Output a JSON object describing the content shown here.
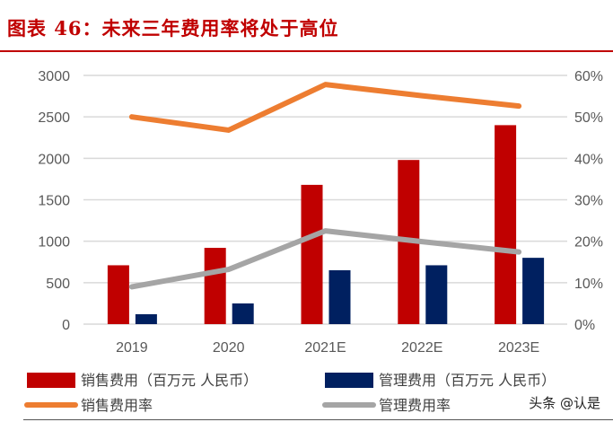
{
  "title": "图表 46：未来三年费用率将处于高位",
  "watermark": "头条 @认是",
  "colors": {
    "sales_expense": "#c00000",
    "admin_expense": "#002060",
    "sales_rate": "#ed7d31",
    "admin_rate": "#a5a5a5",
    "title": "#c00000"
  },
  "chart_data": {
    "type": "bar",
    "categories": [
      "2019",
      "2020",
      "2021E",
      "2022E",
      "2023E"
    ],
    "y_left": {
      "range": [
        0,
        3000
      ],
      "ticks": [
        "0",
        "500",
        "1000",
        "1500",
        "2000",
        "2500",
        "3000"
      ]
    },
    "y_right": {
      "range": [
        0,
        60
      ],
      "ticks": [
        "0%",
        "10%",
        "20%",
        "30%",
        "40%",
        "50%",
        "60%"
      ]
    },
    "grid": true,
    "legend_position": "bottom",
    "series": [
      {
        "name": "销售费用（百万元 人民币）",
        "type": "bar",
        "axis": "left",
        "values": [
          710,
          920,
          1680,
          1980,
          2400
        ]
      },
      {
        "name": "管理费用（百万元 人民币）",
        "type": "bar",
        "axis": "left",
        "values": [
          120,
          250,
          650,
          710,
          800
        ]
      },
      {
        "name": "销售费用率",
        "type": "line",
        "axis": "right",
        "values": [
          50.0,
          46.8,
          57.8,
          55.1,
          52.6
        ]
      },
      {
        "name": "管理费用率",
        "type": "line",
        "axis": "right",
        "values": [
          9.0,
          13.2,
          22.5,
          19.9,
          17.4
        ]
      }
    ]
  }
}
